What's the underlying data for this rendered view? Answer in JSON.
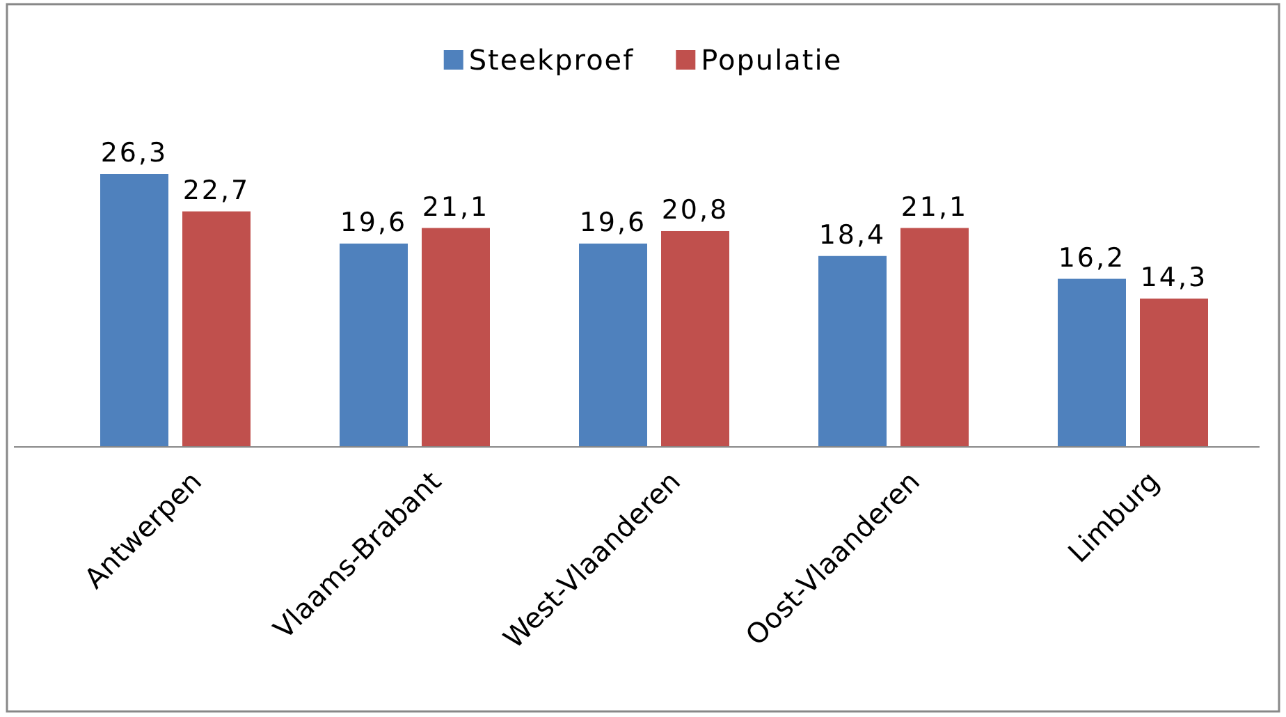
{
  "chart_data": {
    "type": "bar",
    "categories": [
      "Antwerpen",
      "Vlaams-Brabant",
      "West-Vlaanderen",
      "Oost-Vlaanderen",
      "Limburg"
    ],
    "series": [
      {
        "name": "Steekproef",
        "color": "#4f81bd",
        "values": [
          26.3,
          19.6,
          19.6,
          18.4,
          16.2
        ],
        "value_labels": [
          "26,3",
          "19,6",
          "19,6",
          "18,4",
          "16,2"
        ]
      },
      {
        "name": "Populatie",
        "color": "#c0504d",
        "values": [
          22.7,
          21.1,
          20.8,
          21.1,
          14.3
        ],
        "value_labels": [
          "22,7",
          "21,1",
          "20,8",
          "21,1",
          "14,3"
        ]
      }
    ],
    "legend": "top"
  }
}
